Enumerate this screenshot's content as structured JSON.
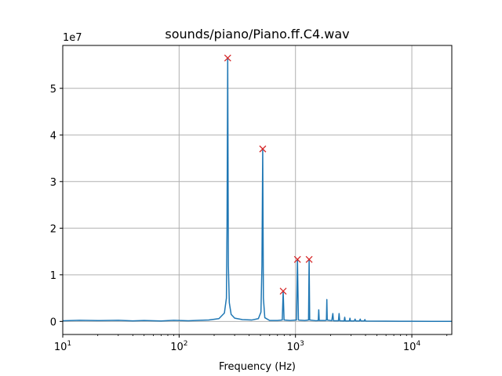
{
  "chart_data": {
    "type": "line",
    "title": "sounds/piano/Piano.ff.C4.wav",
    "xlabel": "Frequency (Hz)",
    "ylabel": "",
    "x_scale": "log",
    "xlim": [
      10,
      22050
    ],
    "ylim": [
      -2800000,
      59200000
    ],
    "y_multiplier_label": "1e7",
    "y_scale_factor": 10000000,
    "grid": true,
    "line_color": "#1f77b4",
    "peak_marker_color": "#d62728",
    "x_ticks": [
      {
        "value": 10,
        "base": "10",
        "exp": "1"
      },
      {
        "value": 100,
        "base": "10",
        "exp": "2"
      },
      {
        "value": 1000,
        "base": "10",
        "exp": "3"
      },
      {
        "value": 10000,
        "base": "10",
        "exp": "4"
      }
    ],
    "y_ticks": [
      {
        "value": 0,
        "label": "0"
      },
      {
        "value": 10000000,
        "label": "1"
      },
      {
        "value": 20000000,
        "label": "2"
      },
      {
        "value": 30000000,
        "label": "3"
      },
      {
        "value": 40000000,
        "label": "4"
      },
      {
        "value": 50000000,
        "label": "5"
      }
    ],
    "series": [
      {
        "points": [
          [
            10,
            150000
          ],
          [
            14,
            250000
          ],
          [
            20,
            180000
          ],
          [
            30,
            250000
          ],
          [
            40,
            120000
          ],
          [
            50,
            200000
          ],
          [
            70,
            100000
          ],
          [
            90,
            250000
          ],
          [
            120,
            150000
          ],
          [
            150,
            250000
          ],
          [
            180,
            300000
          ],
          [
            220,
            600000
          ],
          [
            245,
            1800000
          ],
          [
            255,
            5000000
          ],
          [
            258,
            20000000
          ],
          [
            261.6,
            56500000
          ],
          [
            265,
            12000000
          ],
          [
            270,
            4000000
          ],
          [
            280,
            1500000
          ],
          [
            300,
            700000
          ],
          [
            350,
            400000
          ],
          [
            420,
            300000
          ],
          [
            480,
            600000
          ],
          [
            505,
            2000000
          ],
          [
            515,
            12000000
          ],
          [
            523,
            37000000
          ],
          [
            530,
            5000000
          ],
          [
            545,
            800000
          ],
          [
            600,
            200000
          ],
          [
            700,
            200000
          ],
          [
            770,
            300000
          ],
          [
            784,
            6500000
          ],
          [
            798,
            300000
          ],
          [
            900,
            200000
          ],
          [
            1020,
            300000
          ],
          [
            1040,
            13300000
          ],
          [
            1060,
            300000
          ],
          [
            1200,
            200000
          ],
          [
            1295,
            300000
          ],
          [
            1310,
            13300000
          ],
          [
            1325,
            300000
          ],
          [
            1500,
            150000
          ],
          [
            1570,
            200000
          ],
          [
            1585,
            2500000
          ],
          [
            1600,
            200000
          ],
          [
            1800,
            200000
          ],
          [
            1845,
            300000
          ],
          [
            1860,
            4700000
          ],
          [
            1875,
            300000
          ],
          [
            2050,
            150000
          ],
          [
            2095,
            1700000
          ],
          [
            2120,
            150000
          ],
          [
            2340,
            150000
          ],
          [
            2370,
            1700000
          ],
          [
            2400,
            150000
          ],
          [
            2620,
            100000
          ],
          [
            2650,
            900000
          ],
          [
            2680,
            100000
          ],
          [
            2900,
            100000
          ],
          [
            2940,
            700000
          ],
          [
            2970,
            100000
          ],
          [
            3200,
            100000
          ],
          [
            3250,
            500000
          ],
          [
            3300,
            100000
          ],
          [
            3550,
            100000
          ],
          [
            3600,
            500000
          ],
          [
            3650,
            100000
          ],
          [
            3900,
            100000
          ],
          [
            3950,
            400000
          ],
          [
            4000,
            80000
          ],
          [
            6000,
            50000
          ],
          [
            10000,
            30000
          ],
          [
            15000,
            20000
          ],
          [
            22050,
            10000
          ]
        ]
      }
    ],
    "peaks": [
      {
        "x": 261.6,
        "y": 56500000
      },
      {
        "x": 523,
        "y": 37000000
      },
      {
        "x": 784,
        "y": 6500000
      },
      {
        "x": 1040,
        "y": 13300000
      },
      {
        "x": 1310,
        "y": 13300000
      }
    ]
  }
}
